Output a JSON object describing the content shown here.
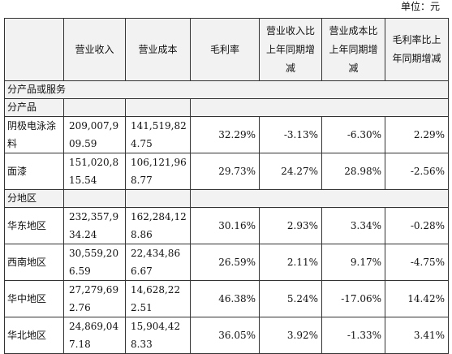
{
  "unit_note": "单位：元",
  "headers": [
    "",
    "营业收入",
    "营业成本",
    "毛利率",
    "营业收入比上年同期增减",
    "营业成本比上年同期增减",
    "毛利率比上年同期增减"
  ],
  "sections": {
    "product_or_service": "分产品或服务",
    "by_product": "分产品",
    "by_region": "分地区"
  },
  "product_rows": [
    {
      "name": "阴极电泳涂料",
      "revenue": "209,007,909.59",
      "cost": "141,519,824.75",
      "margin": "32.29%",
      "rev_change": "-3.13%",
      "cost_change": "-6.30%",
      "margin_change": "2.29%"
    },
    {
      "name": "面漆",
      "revenue": "151,020,815.54",
      "cost": "106,121,968.77",
      "margin": "29.73%",
      "rev_change": "24.27%",
      "cost_change": "28.98%",
      "margin_change": "-2.56%"
    }
  ],
  "region_rows": [
    {
      "name": "华东地区",
      "revenue": "232,357,934.24",
      "cost": "162,284,128.86",
      "margin": "30.16%",
      "rev_change": "2.93%",
      "cost_change": "3.34%",
      "margin_change": "-0.28%"
    },
    {
      "name": "西南地区",
      "revenue": "30,559,206.59",
      "cost": "22,434,866.67",
      "margin": "26.59%",
      "rev_change": "2.11%",
      "cost_change": "9.17%",
      "margin_change": "-4.75%"
    },
    {
      "name": "华中地区",
      "revenue": "27,279,692.76",
      "cost": "14,628,222.51",
      "margin": "46.38%",
      "rev_change": "5.24%",
      "cost_change": "-17.06%",
      "margin_change": "14.42%"
    },
    {
      "name": "华北地区",
      "revenue": "24,869,047.18",
      "cost": "15,904,428.33",
      "margin": "36.05%",
      "rev_change": "3.92%",
      "cost_change": "-1.33%",
      "margin_change": "3.41%"
    }
  ]
}
